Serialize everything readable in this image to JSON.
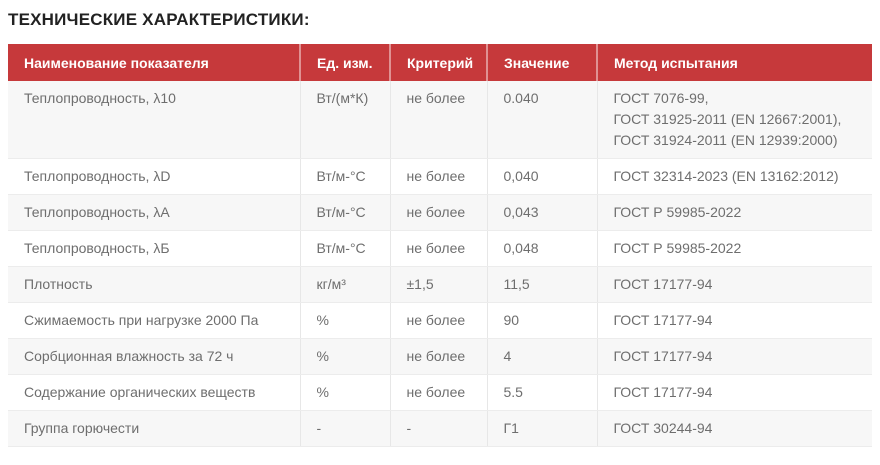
{
  "page": {
    "title": "ТЕХНИЧЕСКИЕ ХАРАКТЕРИСТИКИ:"
  },
  "colors": {
    "header_bg": "#c6393b",
    "header_text": "#ffffff",
    "row_alt_bg": "#f7f7f7",
    "body_text": "#6e6e6e",
    "title_text": "#222222",
    "divider": "#e7e7e7"
  },
  "table": {
    "headers": [
      "Наименование показателя",
      "Ед. изм.",
      "Критерий",
      "Значение",
      "Метод испытания"
    ],
    "rows": [
      {
        "name": "Теплопроводность, λ10",
        "unit": "Вт/(м*К)",
        "criterion": "не более",
        "value": "0.040",
        "method": "ГОСТ 7076-99,\nГОСТ 31925-2011 (EN 12667:2001),\nГОСТ 31924-2011 (EN 12939:2000)"
      },
      {
        "name": "Теплопроводность, λD",
        "unit": "Вт/м-°С",
        "criterion": "не более",
        "value": "0,040",
        "method": "ГОСТ 32314-2023 (EN 13162:2012)"
      },
      {
        "name": "Теплопроводность, λА",
        "unit": "Вт/м-°С",
        "criterion": "не более",
        "value": "0,043",
        "method": "ГОСТ Р 59985-2022"
      },
      {
        "name": "Теплопроводность, λБ",
        "unit": "Вт/м-°С",
        "criterion": "не более",
        "value": "0,048",
        "method": "ГОСТ Р 59985-2022"
      },
      {
        "name": "Плотность",
        "unit": "кг/м³",
        "criterion": "±1,5",
        "value": "11,5",
        "method": "ГОСТ 17177-94"
      },
      {
        "name": "Сжимаемость при нагрузке 2000 Па",
        "unit": "%",
        "criterion": "не более",
        "value": "90",
        "method": "ГОСТ 17177-94"
      },
      {
        "name": "Сорбционная влажность за 72 ч",
        "unit": "%",
        "criterion": "не более",
        "value": "4",
        "method": "ГОСТ 17177-94"
      },
      {
        "name": "Содержание органических веществ",
        "unit": "%",
        "criterion": "не более",
        "value": "5.5",
        "method": "ГОСТ 17177-94"
      },
      {
        "name": "Группа горючести",
        "unit": "-",
        "criterion": "-",
        "value": "Г1",
        "method": "ГОСТ 30244-94"
      }
    ]
  }
}
